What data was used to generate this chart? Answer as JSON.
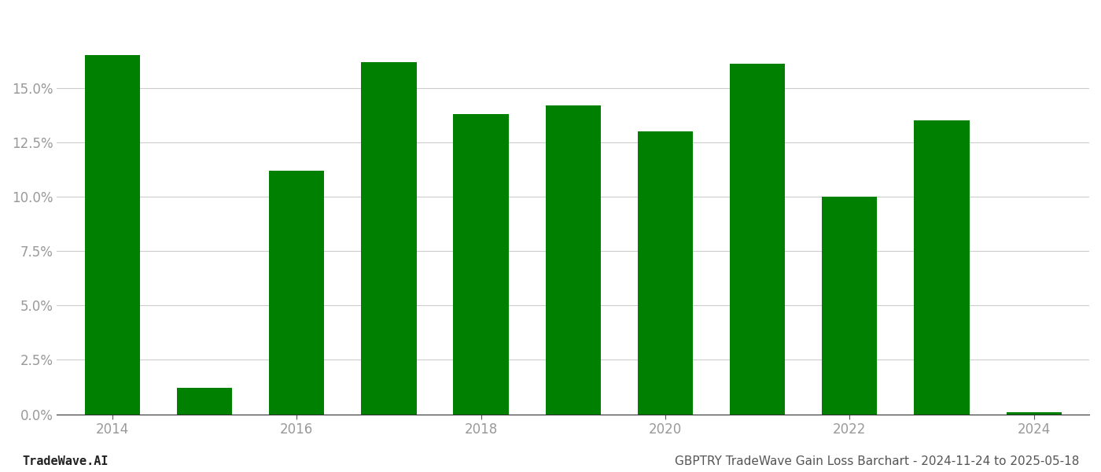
{
  "years": [
    2014,
    2015,
    2016,
    2017,
    2018,
    2019,
    2020,
    2021,
    2022,
    2023,
    2024
  ],
  "values": [
    0.165,
    0.012,
    0.112,
    0.162,
    0.138,
    0.142,
    0.13,
    0.161,
    0.1,
    0.135,
    0.001
  ],
  "bar_color": "#008000",
  "background_color": "#ffffff",
  "yticks": [
    0.0,
    0.025,
    0.05,
    0.075,
    0.1,
    0.125,
    0.15
  ],
  "ylim": [
    0.0,
    0.185
  ],
  "xlim": [
    2013.4,
    2024.6
  ],
  "xticks": [
    2014,
    2016,
    2018,
    2020,
    2022,
    2024
  ],
  "grid_color": "#cccccc",
  "tick_color": "#999999",
  "footer_left": "TradeWave.AI",
  "footer_right": "GBPTRY TradeWave Gain Loss Barchart - 2024-11-24 to 2025-05-18",
  "footer_fontsize": 11,
  "tick_fontsize": 12,
  "bar_width": 0.6
}
